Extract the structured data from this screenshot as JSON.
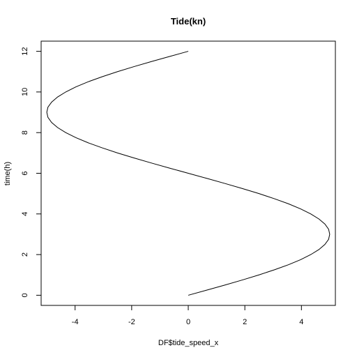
{
  "chart_data": {
    "type": "line",
    "title": "Tide(kn)",
    "xlabel": "DF$tide_speed_x",
    "ylabel": "time(h)",
    "xlim": [
      -5.2,
      5.2
    ],
    "ylim": [
      -0.5,
      12.5
    ],
    "x_ticks": [
      -4,
      -2,
      0,
      2,
      4
    ],
    "y_ticks": [
      0,
      2,
      4,
      6,
      8,
      10,
      12
    ],
    "x_tick_labels": [
      "-4",
      "-2",
      "0",
      "2",
      "4"
    ],
    "y_tick_labels": [
      "0",
      "2",
      "4",
      "6",
      "8",
      "10",
      "12"
    ],
    "grid": false,
    "legend": "none",
    "line_color": "#000000",
    "series": [
      {
        "x": [
          0,
          0.65,
          1.29,
          1.91,
          2.5,
          3.04,
          3.54,
          3.97,
          4.33,
          4.62,
          4.83,
          4.96,
          5.0,
          4.96,
          4.83,
          4.62,
          4.33,
          3.97,
          3.54,
          3.04,
          2.5,
          1.91,
          1.29,
          0.65,
          0,
          -0.65,
          -1.29,
          -1.91,
          -2.5,
          -3.04,
          -3.54,
          -3.97,
          -4.33,
          -4.62,
          -4.83,
          -4.96,
          -5.0,
          -4.96,
          -4.83,
          -4.62,
          -4.33,
          -3.97,
          -3.54,
          -3.04,
          -2.5,
          -1.91,
          -1.29,
          -0.65,
          0
        ],
        "y": [
          0,
          0.25,
          0.5,
          0.75,
          1.0,
          1.25,
          1.5,
          1.75,
          2.0,
          2.25,
          2.5,
          2.75,
          3.0,
          3.25,
          3.5,
          3.75,
          4.0,
          4.25,
          4.5,
          4.75,
          5.0,
          5.25,
          5.5,
          5.75,
          6.0,
          6.25,
          6.5,
          6.75,
          7.0,
          7.25,
          7.5,
          7.75,
          8.0,
          8.25,
          8.5,
          8.75,
          9.0,
          9.25,
          9.5,
          9.75,
          10.0,
          10.25,
          10.5,
          10.75,
          11.0,
          11.25,
          11.5,
          11.75,
          12.0
        ]
      }
    ]
  }
}
